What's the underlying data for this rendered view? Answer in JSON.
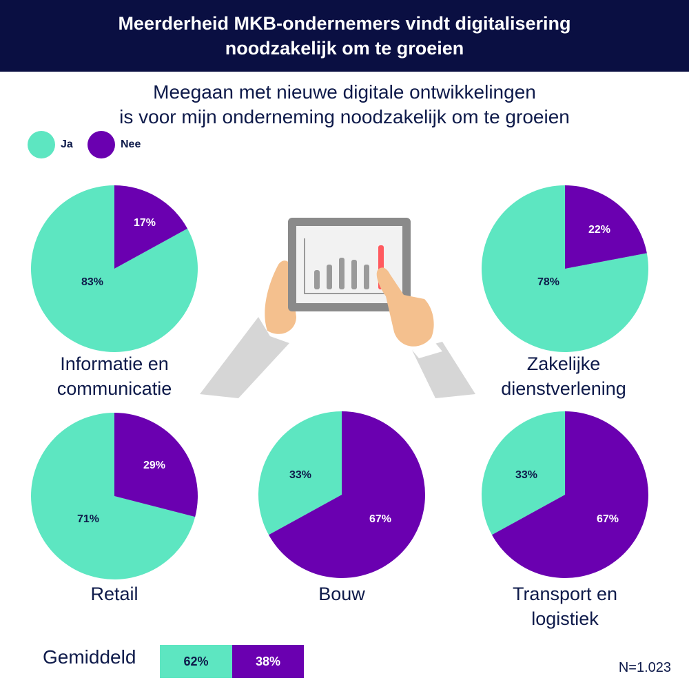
{
  "header": {
    "title_line1": "Meerderheid MKB-ondernemers vindt digitalisering",
    "title_line2": "noodzakelijk om te groeien"
  },
  "subtitle": {
    "line1": "Meegaan met nieuwe digitale ontwikkelingen",
    "line2": "is voor mijn onderneming noodzakelijk om te groeien"
  },
  "colors": {
    "ja": "#5de6c1",
    "nee": "#6a00b0",
    "header_bg": "#0a0f42",
    "text": "#0e1a4a"
  },
  "footer": {
    "avg_label": "Gemiddeld",
    "avg_ja": "62%",
    "avg_nee": "38%",
    "n": "N=1.023"
  },
  "chart_data": {
    "type": "pie",
    "title": "Meegaan met nieuwe digitale ontwikkelingen is voor mijn onderneming noodzakelijk om te groeien",
    "legend": [
      "Ja",
      "Nee"
    ],
    "legend_position": "top-left",
    "pies": [
      {
        "id": "informatie",
        "label_lines": [
          "Informatie en",
          "communicatie"
        ],
        "ja": 83,
        "nee": 17,
        "ja_label": "83%",
        "nee_label": "17%"
      },
      {
        "id": "zakelijk",
        "label_lines": [
          "Zakelijke",
          "dienstverlening"
        ],
        "ja": 78,
        "nee": 22,
        "ja_label": "78%",
        "nee_label": "22%"
      },
      {
        "id": "retail",
        "label_lines": [
          "Retail"
        ],
        "ja": 71,
        "nee": 29,
        "ja_label": "71%",
        "nee_label": "29%"
      },
      {
        "id": "bouw",
        "label_lines": [
          "Bouw"
        ],
        "ja": 33,
        "nee": 67,
        "ja_label": "33%",
        "nee_label": "67%"
      },
      {
        "id": "transport",
        "label_lines": [
          "Transport en",
          "logistiek"
        ],
        "ja": 33,
        "nee": 67,
        "ja_label": "33%",
        "nee_label": "67%"
      }
    ],
    "average": {
      "label": "Gemiddeld",
      "ja": 62,
      "nee": 38
    }
  }
}
